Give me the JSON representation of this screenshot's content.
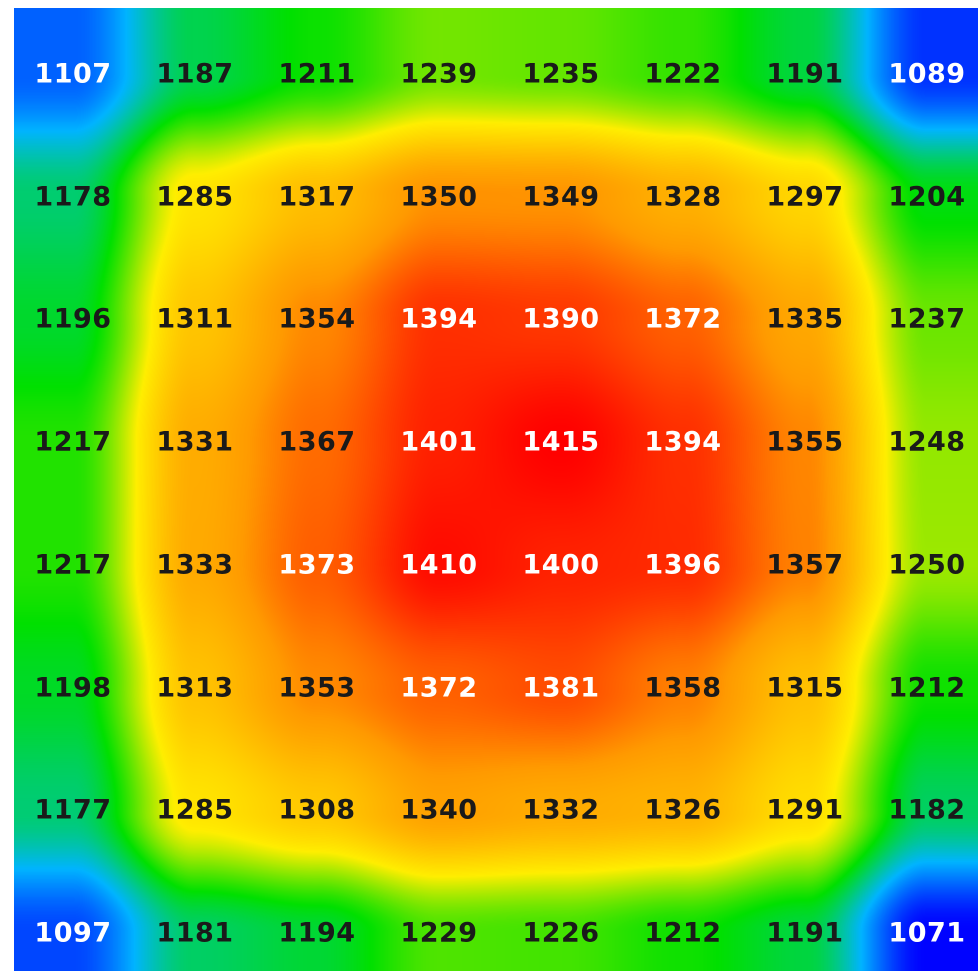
{
  "chart_data": {
    "type": "heatmap",
    "title": "",
    "xlabel": "",
    "ylabel": "",
    "rows": 8,
    "cols": 8,
    "values": [
      [
        1107,
        1187,
        1211,
        1239,
        1235,
        1222,
        1191,
        1089
      ],
      [
        1178,
        1285,
        1317,
        1350,
        1349,
        1328,
        1297,
        1204
      ],
      [
        1196,
        1311,
        1354,
        1394,
        1390,
        1372,
        1335,
        1237
      ],
      [
        1217,
        1331,
        1367,
        1401,
        1415,
        1394,
        1355,
        1248
      ],
      [
        1217,
        1333,
        1373,
        1410,
        1400,
        1396,
        1357,
        1250
      ],
      [
        1198,
        1313,
        1353,
        1372,
        1381,
        1358,
        1315,
        1212
      ],
      [
        1177,
        1285,
        1308,
        1340,
        1332,
        1326,
        1291,
        1182
      ],
      [
        1097,
        1181,
        1194,
        1229,
        1226,
        1212,
        1191,
        1071
      ]
    ],
    "color_scale": {
      "min": 1070,
      "max": 1415,
      "stops": [
        "#0000ff",
        "#00b4ff",
        "#00e000",
        "#ffee00",
        "#ff9a00",
        "#ff0000"
      ]
    },
    "legend": "none",
    "grid": false
  }
}
